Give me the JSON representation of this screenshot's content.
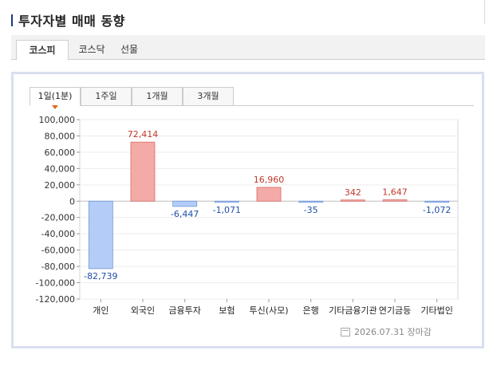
{
  "title": "투자자별 매매 동향",
  "main_tabs": [
    {
      "label": "코스피",
      "active": true
    },
    {
      "label": "코스닥",
      "active": false
    },
    {
      "label": "선물",
      "active": false
    }
  ],
  "period_tabs": [
    {
      "label": "1일(1분)",
      "active": true
    },
    {
      "label": "1주일",
      "active": false
    },
    {
      "label": "1개월",
      "active": false
    },
    {
      "label": "3개월",
      "active": false
    }
  ],
  "footer": {
    "date_text": "2026.07.31 장마감"
  },
  "colors": {
    "positive_fill": "#f4aaa6",
    "positive_stroke": "#d96b66",
    "positive_text": "#c0392b",
    "negative_fill": "#b3cdf8",
    "negative_stroke": "#6f96d8",
    "negative_text": "#1f4fa8"
  },
  "chart_data": {
    "type": "bar",
    "categories": [
      "개인",
      "외국인",
      "금융투자",
      "보험",
      "투신(사모)",
      "은행",
      "기타금융기관",
      "연기금등",
      "기타법인"
    ],
    "values": [
      -82739,
      72414,
      -6447,
      -1071,
      16960,
      -35,
      342,
      1647,
      -1072
    ],
    "value_labels": [
      "-82,739",
      "72,414",
      "-6,447",
      "-1,071",
      "16,960",
      "-35",
      "342",
      "1,647",
      "-1,072"
    ],
    "ylim": [
      -120000,
      100000
    ],
    "yticks": [
      100000,
      80000,
      60000,
      40000,
      20000,
      0,
      -20000,
      -40000,
      -60000,
      -80000,
      -100000,
      -120000
    ],
    "ytick_labels": [
      "100,000",
      "80,000",
      "60,000",
      "40,000",
      "20,000",
      "0",
      "-20,000",
      "-40,000",
      "-60,000",
      "-80,000",
      "-100,000",
      "-120,000"
    ],
    "grid": true
  }
}
